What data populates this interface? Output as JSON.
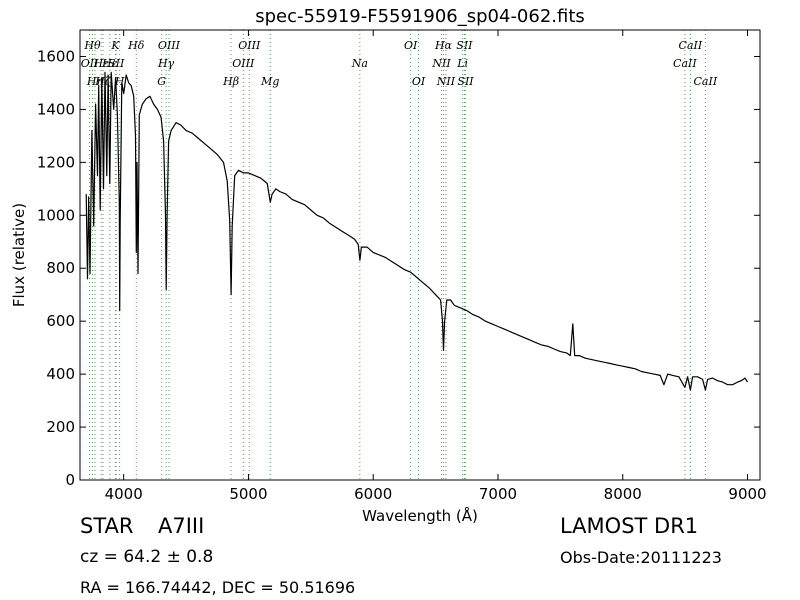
{
  "chart_data": {
    "type": "line",
    "title": "spec-55919-F5591906_sp04-062.fits",
    "xlabel": "Wavelength (Å)",
    "ylabel": "Flux (relative)",
    "xlim": [
      3650,
      9100
    ],
    "ylim": [
      0,
      1700
    ],
    "xticks": [
      4000,
      5000,
      6000,
      7000,
      8000,
      9000
    ],
    "yticks": [
      0,
      200,
      400,
      600,
      800,
      1000,
      1200,
      1400,
      1600
    ],
    "grid": false,
    "legend": "none",
    "series": [
      {
        "points": [
          [
            3700,
            1080
          ],
          [
            3710,
            760
          ],
          [
            3720,
            1070
          ],
          [
            3730,
            780
          ],
          [
            3745,
            1320
          ],
          [
            3760,
            960
          ],
          [
            3775,
            1420
          ],
          [
            3790,
            1150
          ],
          [
            3800,
            1490
          ],
          [
            3812,
            1020
          ],
          [
            3825,
            1520
          ],
          [
            3838,
            1100
          ],
          [
            3850,
            1540
          ],
          [
            3865,
            1150
          ],
          [
            3875,
            1530
          ],
          [
            3889,
            1120
          ],
          [
            3900,
            1540
          ],
          [
            3920,
            1400
          ],
          [
            3935,
            1520
          ],
          [
            3950,
            1380
          ],
          [
            3965,
            1050
          ],
          [
            3968,
            640
          ],
          [
            3972,
            980
          ],
          [
            3985,
            1500
          ],
          [
            4000,
            1460
          ],
          [
            4020,
            1530
          ],
          [
            4040,
            1500
          ],
          [
            4060,
            1490
          ],
          [
            4080,
            1450
          ],
          [
            4095,
            1300
          ],
          [
            4101,
            860
          ],
          [
            4107,
            1200
          ],
          [
            4115,
            780
          ],
          [
            4125,
            1380
          ],
          [
            4150,
            1420
          ],
          [
            4180,
            1440
          ],
          [
            4210,
            1450
          ],
          [
            4240,
            1420
          ],
          [
            4270,
            1400
          ],
          [
            4300,
            1370
          ],
          [
            4320,
            1280
          ],
          [
            4335,
            1000
          ],
          [
            4341,
            720
          ],
          [
            4348,
            1000
          ],
          [
            4360,
            1280
          ],
          [
            4380,
            1320
          ],
          [
            4420,
            1350
          ],
          [
            4460,
            1340
          ],
          [
            4500,
            1320
          ],
          [
            4550,
            1310
          ],
          [
            4600,
            1290
          ],
          [
            4650,
            1270
          ],
          [
            4700,
            1250
          ],
          [
            4750,
            1230
          ],
          [
            4800,
            1200
          ],
          [
            4830,
            1130
          ],
          [
            4850,
            980
          ],
          [
            4861,
            700
          ],
          [
            4870,
            960
          ],
          [
            4890,
            1150
          ],
          [
            4920,
            1170
          ],
          [
            4960,
            1160
          ],
          [
            5000,
            1160
          ],
          [
            5050,
            1150
          ],
          [
            5100,
            1140
          ],
          [
            5150,
            1120
          ],
          [
            5175,
            1050
          ],
          [
            5190,
            1080
          ],
          [
            5220,
            1100
          ],
          [
            5250,
            1090
          ],
          [
            5300,
            1080
          ],
          [
            5350,
            1060
          ],
          [
            5400,
            1050
          ],
          [
            5450,
            1040
          ],
          [
            5500,
            1020
          ],
          [
            5550,
            1000
          ],
          [
            5600,
            990
          ],
          [
            5650,
            970
          ],
          [
            5700,
            955
          ],
          [
            5750,
            940
          ],
          [
            5800,
            925
          ],
          [
            5850,
            910
          ],
          [
            5880,
            890
          ],
          [
            5893,
            830
          ],
          [
            5905,
            880
          ],
          [
            5950,
            880
          ],
          [
            6000,
            860
          ],
          [
            6050,
            850
          ],
          [
            6100,
            840
          ],
          [
            6150,
            825
          ],
          [
            6200,
            810
          ],
          [
            6250,
            795
          ],
          [
            6300,
            785
          ],
          [
            6350,
            765
          ],
          [
            6400,
            745
          ],
          [
            6450,
            725
          ],
          [
            6500,
            700
          ],
          [
            6540,
            680
          ],
          [
            6555,
            600
          ],
          [
            6563,
            490
          ],
          [
            6572,
            600
          ],
          [
            6590,
            680
          ],
          [
            6620,
            680
          ],
          [
            6650,
            660
          ],
          [
            6700,
            650
          ],
          [
            6750,
            640
          ],
          [
            6800,
            625
          ],
          [
            6850,
            615
          ],
          [
            6900,
            600
          ],
          [
            6950,
            590
          ],
          [
            7000,
            580
          ],
          [
            7050,
            570
          ],
          [
            7100,
            560
          ],
          [
            7150,
            550
          ],
          [
            7200,
            540
          ],
          [
            7250,
            530
          ],
          [
            7300,
            520
          ],
          [
            7350,
            510
          ],
          [
            7400,
            505
          ],
          [
            7450,
            495
          ],
          [
            7500,
            485
          ],
          [
            7550,
            480
          ],
          [
            7580,
            470
          ],
          [
            7600,
            590
          ],
          [
            7615,
            470
          ],
          [
            7650,
            470
          ],
          [
            7700,
            460
          ],
          [
            7750,
            455
          ],
          [
            7800,
            450
          ],
          [
            7850,
            445
          ],
          [
            7900,
            440
          ],
          [
            7950,
            435
          ],
          [
            8000,
            430
          ],
          [
            8050,
            425
          ],
          [
            8100,
            420
          ],
          [
            8150,
            410
          ],
          [
            8200,
            405
          ],
          [
            8250,
            400
          ],
          [
            8300,
            395
          ],
          [
            8330,
            360
          ],
          [
            8360,
            400
          ],
          [
            8400,
            395
          ],
          [
            8450,
            390
          ],
          [
            8498,
            350
          ],
          [
            8520,
            390
          ],
          [
            8542,
            340
          ],
          [
            8560,
            390
          ],
          [
            8600,
            390
          ],
          [
            8640,
            380
          ],
          [
            8662,
            340
          ],
          [
            8680,
            380
          ],
          [
            8720,
            385
          ],
          [
            8760,
            375
          ],
          [
            8800,
            370
          ],
          [
            8840,
            360
          ],
          [
            8880,
            360
          ],
          [
            8920,
            370
          ],
          [
            8950,
            375
          ],
          [
            8980,
            385
          ],
          [
            9000,
            370
          ]
        ],
        "color": "#000000"
      }
    ],
    "lines": [
      {
        "wl": 3727,
        "label": "OII",
        "row": 1
      },
      {
        "wl": 3750,
        "label": "Hθ",
        "row": 0
      },
      {
        "wl": 3770,
        "label": "Hη",
        "row": 2
      },
      {
        "wl": 3820,
        "label": "Hε",
        "row": 1
      },
      {
        "wl": 3835,
        "label": "Hζ",
        "row": 2
      },
      {
        "wl": 3889,
        "label": "Hε",
        "row": 1
      },
      {
        "wl": 3934,
        "label": "K",
        "row": 0
      },
      {
        "wl": 3940,
        "label": "SII",
        "row": 1
      },
      {
        "wl": 3968,
        "label": "H",
        "row": 2
      },
      {
        "wl": 4101,
        "label": "Hδ",
        "row": 0
      },
      {
        "wl": 4304,
        "label": "G",
        "row": 2
      },
      {
        "wl": 4340,
        "label": "Hγ",
        "row": 1
      },
      {
        "wl": 4363,
        "label": "OIII",
        "row": 0
      },
      {
        "wl": 4861,
        "label": "Hβ",
        "row": 2
      },
      {
        "wl": 4959,
        "label": "OIII",
        "row": 1
      },
      {
        "wl": 5007,
        "label": "OIII",
        "row": 0
      },
      {
        "wl": 5175,
        "label": "Mg",
        "row": 2
      },
      {
        "wl": 5893,
        "label": "Na",
        "row": 1
      },
      {
        "wl": 6300,
        "label": "OI",
        "row": 0
      },
      {
        "wl": 6363,
        "label": "OI",
        "row": 2
      },
      {
        "wl": 6548,
        "label": "NII",
        "row": 1
      },
      {
        "wl": 6563,
        "label": "Hα",
        "row": 0
      },
      {
        "wl": 6583,
        "label": "NII",
        "row": 2
      },
      {
        "wl": 6717,
        "label": "Li",
        "row": 1
      },
      {
        "wl": 6731,
        "label": "SII",
        "row": 0
      },
      {
        "wl": 6740,
        "label": "SII",
        "row": 2
      },
      {
        "wl": 8498,
        "label": "CaII",
        "row": 1
      },
      {
        "wl": 8542,
        "label": "CaII",
        "row": 0
      },
      {
        "wl": 8662,
        "label": "CaII",
        "row": 2
      }
    ],
    "line_color": "#44aa44"
  },
  "info": {
    "object_class": "STAR",
    "subclass": "A7III",
    "cz": "cz = 64.2 ± 0.8",
    "coords": "RA = 166.74442, DEC = 50.51696",
    "survey": "LAMOST DR1",
    "obs_date": "Obs-Date:20111223"
  }
}
